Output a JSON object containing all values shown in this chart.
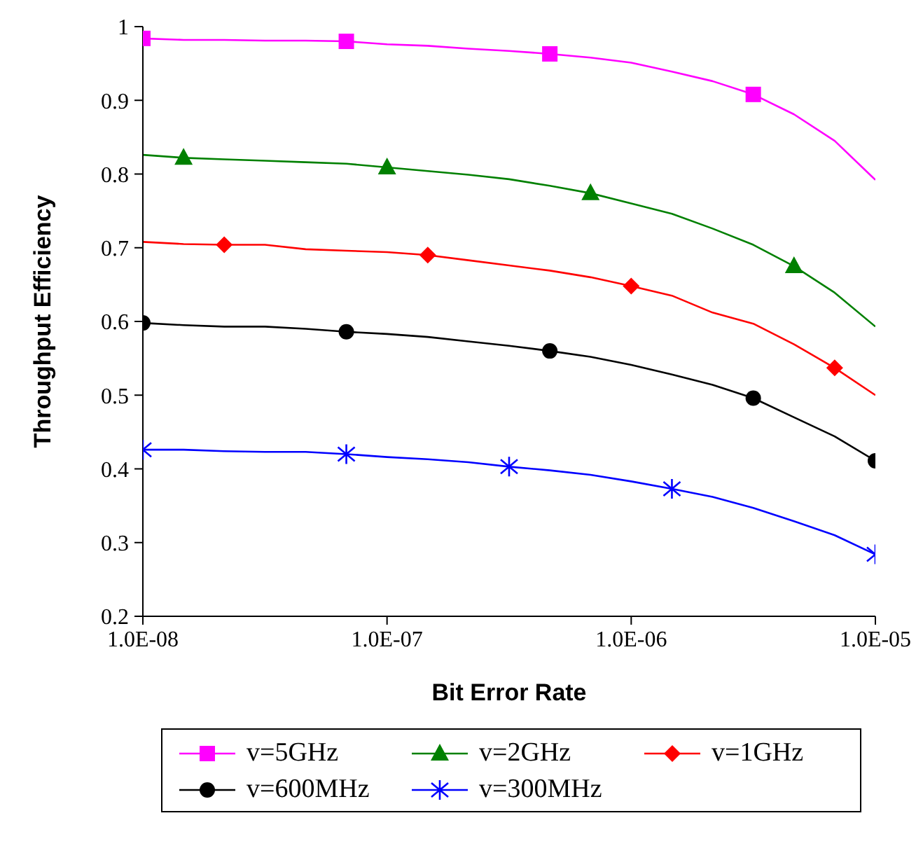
{
  "chart_data": {
    "type": "line",
    "xlabel": "Bit Error Rate",
    "ylabel": "Throughput Efficiency",
    "log": "x",
    "grid": false,
    "legend": "bottom",
    "xlim": [
      1e-08,
      1e-05
    ],
    "xticks": [
      {
        "value": 1e-08,
        "label": "1.0E-08"
      },
      {
        "value": 1e-07,
        "label": "1.0E-07"
      },
      {
        "value": 1e-06,
        "label": "1.0E-06"
      },
      {
        "value": 1e-05,
        "label": "1.0E-05"
      }
    ],
    "ylim": [
      0.2,
      1
    ],
    "yticks": [
      0.2,
      0.3,
      0.4,
      0.5,
      0.6,
      0.7,
      0.8,
      0.9,
      1
    ],
    "series": [
      {
        "color": "#ff00ff",
        "marker": "none",
        "x": [
          1e-08,
          1.468e-08,
          2.154e-08,
          3.162e-08,
          4.642e-08,
          6.813e-08,
          1e-07,
          1.468e-07,
          2.154e-07,
          3.162e-07,
          4.642e-07,
          6.813e-07,
          1e-06,
          1.468e-06,
          2.154e-06,
          3.162e-06,
          4.642e-06,
          6.813e-06,
          1e-05
        ],
        "values": [
          0.984,
          0.982,
          0.982,
          0.981,
          0.981,
          0.98,
          0.976,
          0.974,
          0.97,
          0.967,
          0.963,
          0.958,
          0.951,
          0.939,
          0.926,
          0.908,
          0.881,
          0.845,
          0.792
        ]
      },
      {
        "color": "#008000",
        "marker": "none",
        "x": [
          1e-08,
          1.468e-08,
          2.154e-08,
          3.162e-08,
          4.642e-08,
          6.813e-08,
          1e-07,
          1.468e-07,
          2.154e-07,
          3.162e-07,
          4.642e-07,
          6.813e-07,
          1e-06,
          1.468e-06,
          2.154e-06,
          3.162e-06,
          4.642e-06,
          6.813e-06,
          1e-05
        ],
        "values": [
          0.826,
          0.822,
          0.82,
          0.818,
          0.816,
          0.814,
          0.809,
          0.804,
          0.799,
          0.793,
          0.784,
          0.774,
          0.76,
          0.746,
          0.726,
          0.704,
          0.675,
          0.639,
          0.593
        ]
      },
      {
        "color": "#ff0000",
        "marker": "none",
        "x": [
          1e-08,
          1.468e-08,
          2.154e-08,
          3.162e-08,
          4.642e-08,
          6.813e-08,
          1e-07,
          1.468e-07,
          2.154e-07,
          3.162e-07,
          4.642e-07,
          6.813e-07,
          1e-06,
          1.468e-06,
          2.154e-06,
          3.162e-06,
          4.642e-06,
          6.813e-06,
          1e-05
        ],
        "values": [
          0.708,
          0.705,
          0.704,
          0.704,
          0.698,
          0.696,
          0.694,
          0.69,
          0.683,
          0.676,
          0.669,
          0.66,
          0.648,
          0.635,
          0.612,
          0.597,
          0.569,
          0.537,
          0.5
        ]
      },
      {
        "color": "#000000",
        "marker": "none",
        "x": [
          1e-08,
          1.468e-08,
          2.154e-08,
          3.162e-08,
          4.642e-08,
          6.813e-08,
          1e-07,
          1.468e-07,
          2.154e-07,
          3.162e-07,
          4.642e-07,
          6.813e-07,
          1e-06,
          1.468e-06,
          2.154e-06,
          3.162e-06,
          4.642e-06,
          6.813e-06,
          1e-05
        ],
        "values": [
          0.598,
          0.595,
          0.593,
          0.593,
          0.59,
          0.586,
          0.583,
          0.579,
          0.573,
          0.567,
          0.56,
          0.552,
          0.541,
          0.528,
          0.514,
          0.496,
          0.47,
          0.444,
          0.411
        ]
      },
      {
        "color": "#0000ff",
        "marker": "none",
        "x": [
          1e-08,
          1.468e-08,
          2.154e-08,
          3.162e-08,
          4.642e-08,
          6.813e-08,
          1e-07,
          1.468e-07,
          2.154e-07,
          3.162e-07,
          4.642e-07,
          6.813e-07,
          1e-06,
          1.468e-06,
          2.154e-06,
          3.162e-06,
          4.642e-06,
          6.813e-06,
          1e-05
        ],
        "values": [
          0.426,
          0.426,
          0.424,
          0.423,
          0.423,
          0.42,
          0.416,
          0.413,
          0.409,
          0.403,
          0.398,
          0.392,
          0.383,
          0.373,
          0.362,
          0.347,
          0.329,
          0.31,
          0.284
        ]
      },
      {
        "type": "scatter",
        "name": "v=5GHz",
        "color": "#ff00ff",
        "marker": "square",
        "x": [
          1e-08,
          6.813e-08,
          4.642e-07,
          3.162e-06
        ],
        "values": [
          0.984,
          0.98,
          0.963,
          0.908
        ]
      },
      {
        "type": "scatter",
        "name": "v=2GHz",
        "color": "#008000",
        "marker": "triangle",
        "x": [
          1.468e-08,
          1e-07,
          6.813e-07,
          4.642e-06
        ],
        "values": [
          0.822,
          0.809,
          0.774,
          0.675
        ]
      },
      {
        "type": "scatter",
        "name": "v=1GHz",
        "color": "#ff0000",
        "marker": "diamond",
        "x": [
          2.154e-08,
          1.468e-07,
          1e-06,
          6.813e-06
        ],
        "values": [
          0.704,
          0.69,
          0.648,
          0.537
        ]
      },
      {
        "type": "scatter",
        "name": "v=600MHz",
        "color": "#000000",
        "marker": "circle",
        "x": [
          1e-08,
          6.813e-08,
          4.642e-07,
          3.162e-06,
          1e-05
        ],
        "values": [
          0.598,
          0.586,
          0.56,
          0.496,
          0.411
        ]
      },
      {
        "type": "scatter",
        "name": "v=300MHz",
        "color": "#0000ff",
        "marker": "cross",
        "x": [
          1e-08,
          6.813e-08,
          3.162e-07,
          1.468e-06,
          1e-05
        ],
        "values": [
          0.426,
          0.42,
          0.403,
          0.373,
          0.284
        ]
      }
    ]
  }
}
